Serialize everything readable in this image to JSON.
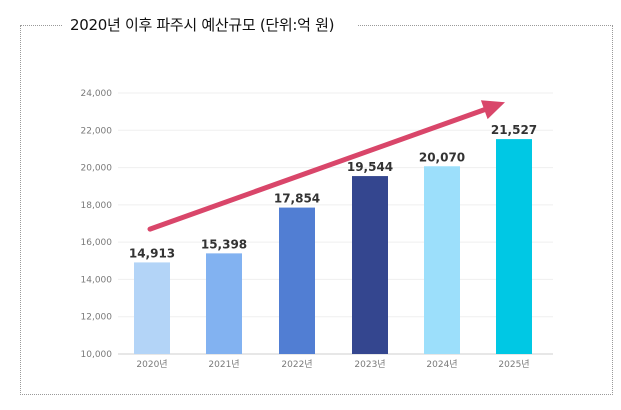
{
  "title": "2020년 이후 파주시 예산규모 (단위:억 원)",
  "chart_data": {
    "type": "bar",
    "title": "2020년 이후 파주시 예산규모 (단위:억 원)",
    "categories": [
      "2020년",
      "2021년",
      "2022년",
      "2023년",
      "2024년",
      "2025년"
    ],
    "values": [
      14913,
      15398,
      17854,
      19544,
      20070,
      21527
    ],
    "value_labels": [
      "14,913",
      "15,398",
      "17,854",
      "19,544",
      "20,070",
      "21,527"
    ],
    "yticks": [
      10000,
      12000,
      14000,
      16000,
      18000,
      20000,
      22000,
      24000
    ],
    "ytick_labels": [
      "10,000",
      "12,000",
      "14,000",
      "16,000",
      "18,000",
      "20,000",
      "22,000",
      "24,000"
    ],
    "ylim": [
      10000,
      24000
    ],
    "xlabel": "",
    "ylabel": "",
    "bar_colors": [
      "#b3d4f7",
      "#82b2f1",
      "#517ed3",
      "#34468f",
      "#9cdffb",
      "#00c8e4"
    ],
    "trend_arrow": {
      "from_value": 16700,
      "to_value": 23500,
      "color": "#d9466a"
    },
    "grid": true
  }
}
